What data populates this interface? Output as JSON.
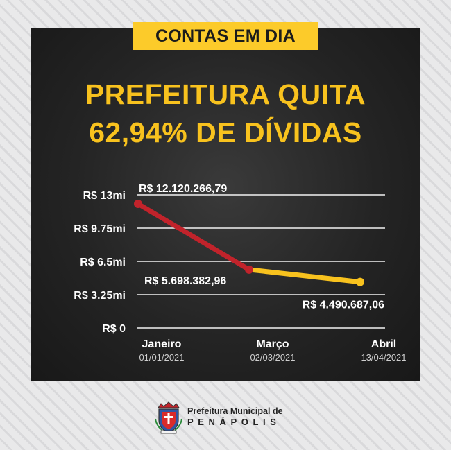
{
  "tag": "CONTAS EM DIA",
  "headline": {
    "line1": "PREFEITURA QUITA",
    "line2": "62,94% DE DÍVIDAS"
  },
  "chart_data": {
    "type": "line",
    "categories": [
      "Janeiro",
      "Março",
      "Abril"
    ],
    "category_dates": [
      "01/01/2021",
      "02/03/2021",
      "13/04/2021"
    ],
    "values": [
      12120266.79,
      5698382.96,
      4490687.06
    ],
    "value_labels": [
      "R$ 12.120.266,79",
      "R$ 5.698.382,96",
      "R$ 4.490.687,06"
    ],
    "segment_colors": [
      "#c1232b",
      "#f8c21e"
    ],
    "ylim": [
      0,
      13000000
    ],
    "yticks": [
      0,
      3250000,
      6500000,
      9750000,
      13000000
    ],
    "ytick_labels": [
      "R$ 0",
      "R$ 3.25mi",
      "R$ 6.5mi",
      "R$ 9.75mi",
      "R$ 13mi"
    ],
    "grid": true,
    "title": "",
    "xlabel": "",
    "ylabel": ""
  },
  "footer": {
    "line1": "Prefeitura Municipal de",
    "line2": "PENÁPOLIS"
  },
  "colors": {
    "accent": "#f8c21e",
    "decline": "#c1232b",
    "panel": "#242424"
  }
}
